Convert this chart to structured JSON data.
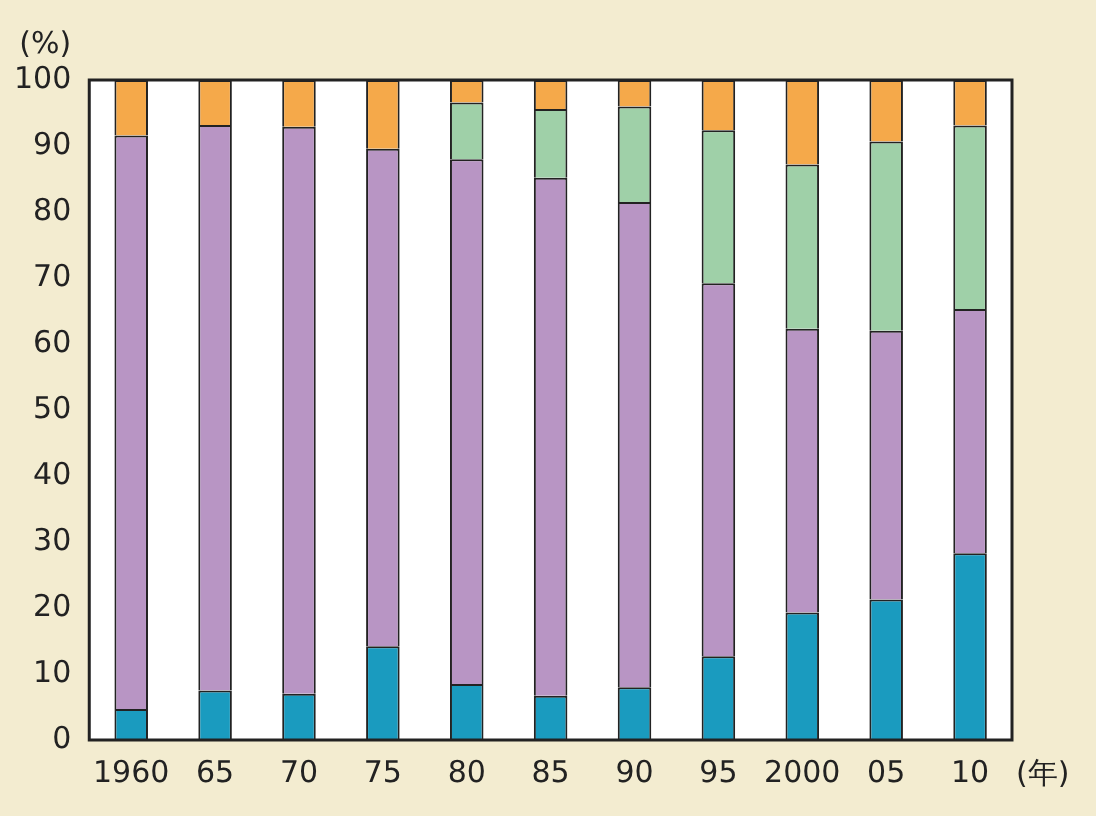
{
  "chart_data": {
    "type": "bar",
    "stacked": true,
    "xlabel": "(年)",
    "ylabel": "(%)",
    "categories": [
      "1960",
      "65",
      "70",
      "75",
      "80",
      "85",
      "90",
      "95",
      "2000",
      "05",
      "10"
    ],
    "series": [
      {
        "color": "#1a9bbf",
        "values": [
          4.7,
          7.5,
          7,
          14.2,
          8.5,
          6.7,
          8,
          12.7,
          19.3,
          21.3,
          28.3
        ]
      },
      {
        "color": "#b895c4",
        "values": [
          86.9,
          85.7,
          85.9,
          75.4,
          79.5,
          78.5,
          73.5,
          56.5,
          43,
          40.7,
          37
        ]
      },
      {
        "color": "#9fd0a8",
        "values": [
          0,
          0,
          0,
          0,
          8.6,
          10.4,
          14.5,
          23.2,
          24.9,
          28.7,
          27.8
        ]
      },
      {
        "color": "#f5a94a",
        "values": [
          8.4,
          6.8,
          7.1,
          10.4,
          3.4,
          4.4,
          4,
          7.6,
          12.8,
          9.3,
          6.9
        ]
      }
    ],
    "ylim": [
      0,
      100
    ],
    "yticks": [
      0,
      10,
      20,
      30,
      40,
      50,
      60,
      70,
      80,
      90,
      100
    ],
    "grid": false,
    "legend": false
  }
}
